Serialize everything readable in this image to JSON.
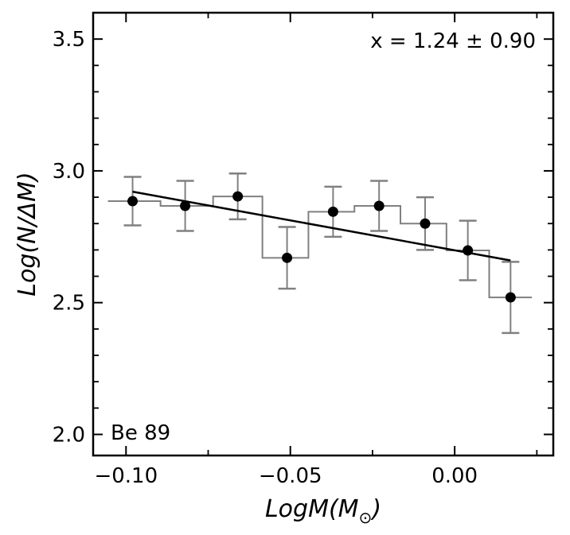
{
  "chart_data": {
    "type": "scatter",
    "title": "",
    "xlabel": "LogM(M",
    "xlabel_sub": "⊙",
    "xlabel_close": ")",
    "ylabel": "Log(N/ΔM)",
    "xlim": [
      -0.11,
      0.03
    ],
    "ylim": [
      1.92,
      3.6
    ],
    "xticks": [
      -0.1,
      -0.05,
      0.0
    ],
    "xtick_labels": [
      "−0.10",
      "−0.05",
      "0.00"
    ],
    "xminor": [
      -0.075,
      -0.025,
      0.025
    ],
    "yticks": [
      2.0,
      2.5,
      3.0,
      3.5
    ],
    "ytick_labels": [
      "2.0",
      "2.5",
      "3.0",
      "3.5"
    ],
    "yminor": [
      2.1,
      2.2,
      2.3,
      2.4,
      2.6,
      2.7,
      2.8,
      2.9,
      3.1,
      3.2,
      3.3,
      3.4
    ],
    "points": {
      "x": [
        -0.098,
        -0.082,
        -0.066,
        -0.051,
        -0.037,
        -0.023,
        -0.009,
        0.004,
        0.017
      ],
      "y": [
        2.885,
        2.867,
        2.903,
        2.67,
        2.845,
        2.867,
        2.8,
        2.698,
        2.52
      ],
      "err": [
        0.092,
        0.095,
        0.087,
        0.117,
        0.095,
        0.095,
        0.1,
        0.113,
        0.135
      ]
    },
    "histogram": {
      "edges": [
        -0.1055,
        -0.0895,
        -0.0735,
        -0.0585,
        -0.0445,
        -0.0305,
        -0.0165,
        -0.0025,
        0.0105,
        0.0235
      ],
      "values": [
        2.885,
        2.867,
        2.903,
        2.67,
        2.845,
        2.867,
        2.8,
        2.698,
        2.52
      ]
    },
    "fit": {
      "x": [
        -0.098,
        0.017
      ],
      "y": [
        2.921,
        2.66
      ]
    },
    "annotations": {
      "slope": "x = 1.24 ± 0.90",
      "cluster": "Be 89"
    },
    "colors": {
      "points": "#000000",
      "errorbars": "#808080",
      "histogram": "#808080",
      "fit": "#000000"
    }
  }
}
